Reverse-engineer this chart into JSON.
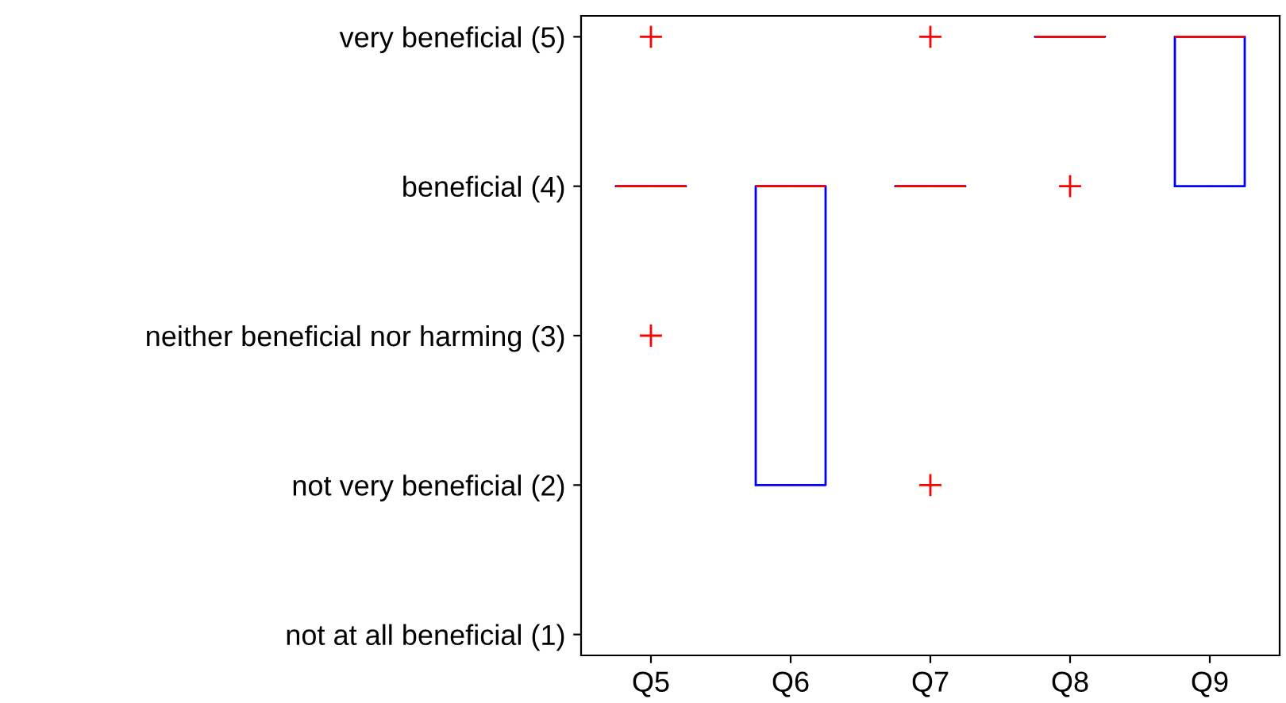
{
  "chart_data": {
    "type": "box",
    "categories": [
      "Q5",
      "Q6",
      "Q7",
      "Q8",
      "Q9"
    ],
    "boxes": [
      {
        "low": 4,
        "q1": 4,
        "median": 4,
        "q3": 4,
        "high": 4,
        "outliers": [
          5,
          3
        ]
      },
      {
        "low": 2,
        "q1": 2,
        "median": 4,
        "q3": 4,
        "high": 4
      },
      {
        "low": 4,
        "q1": 4,
        "median": 4,
        "q3": 4,
        "high": 4,
        "outliers": [
          5,
          2
        ]
      },
      {
        "low": 5,
        "q1": 5,
        "median": 5,
        "q3": 5,
        "high": 5,
        "outliers": [
          4
        ]
      },
      {
        "low": 4,
        "q1": 4,
        "median": 5,
        "q3": 5,
        "high": 5
      }
    ],
    "color": "#0000ff",
    "marker": "cross",
    "ylim": [
      0.86,
      5.14
    ],
    "yticks": [
      {
        "value": 1,
        "label": "not at all beneficial (1)"
      },
      {
        "value": 2,
        "label": "not very beneficial (2)"
      },
      {
        "value": 3,
        "label": "neither beneficial nor harming (3)"
      },
      {
        "value": 4,
        "label": "beneficial (4)"
      },
      {
        "value": 5,
        "label": "very beneficial (5)"
      }
    ],
    "grid": false,
    "legend": false
  }
}
